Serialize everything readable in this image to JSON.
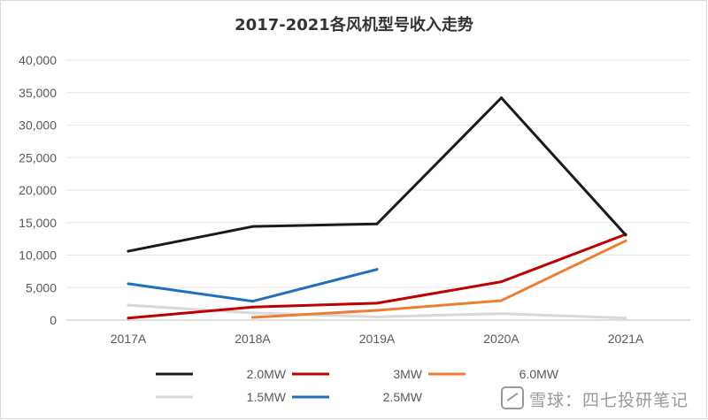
{
  "chart_data": {
    "type": "line",
    "title": "2017-2021各风机型号收入走势",
    "xlabel": "",
    "ylabel": "",
    "categories": [
      "2017A",
      "2018A",
      "2019A",
      "2020A",
      "2021A"
    ],
    "ylim": [
      0,
      40000
    ],
    "yticks": [
      0,
      5000,
      10000,
      15000,
      20000,
      25000,
      30000,
      35000,
      40000
    ],
    "ytick_labels": [
      "0",
      "5,000",
      "10,000",
      "15,000",
      "20,000",
      "25,000",
      "30,000",
      "35,000",
      "40,000"
    ],
    "grid": true,
    "legend_position": "bottom",
    "series": [
      {
        "name": "2.0MW",
        "color": "#1a1a1a",
        "values": [
          10600,
          14400,
          14800,
          34200,
          13100
        ]
      },
      {
        "name": "3MW",
        "color": "#c00000",
        "values": [
          300,
          2000,
          2600,
          5900,
          13200
        ]
      },
      {
        "name": "6.0MW",
        "color": "#ed7d31",
        "values": [
          null,
          400,
          1500,
          3000,
          12200
        ]
      },
      {
        "name": "1.5MW",
        "color": "#d9d9d9",
        "values": [
          2300,
          1100,
          500,
          1000,
          300
        ]
      },
      {
        "name": "2.5MW",
        "color": "#1f6fbf",
        "values": [
          5600,
          2900,
          7800,
          null,
          null
        ]
      }
    ]
  },
  "watermark": "雪球：四七投研笔记"
}
